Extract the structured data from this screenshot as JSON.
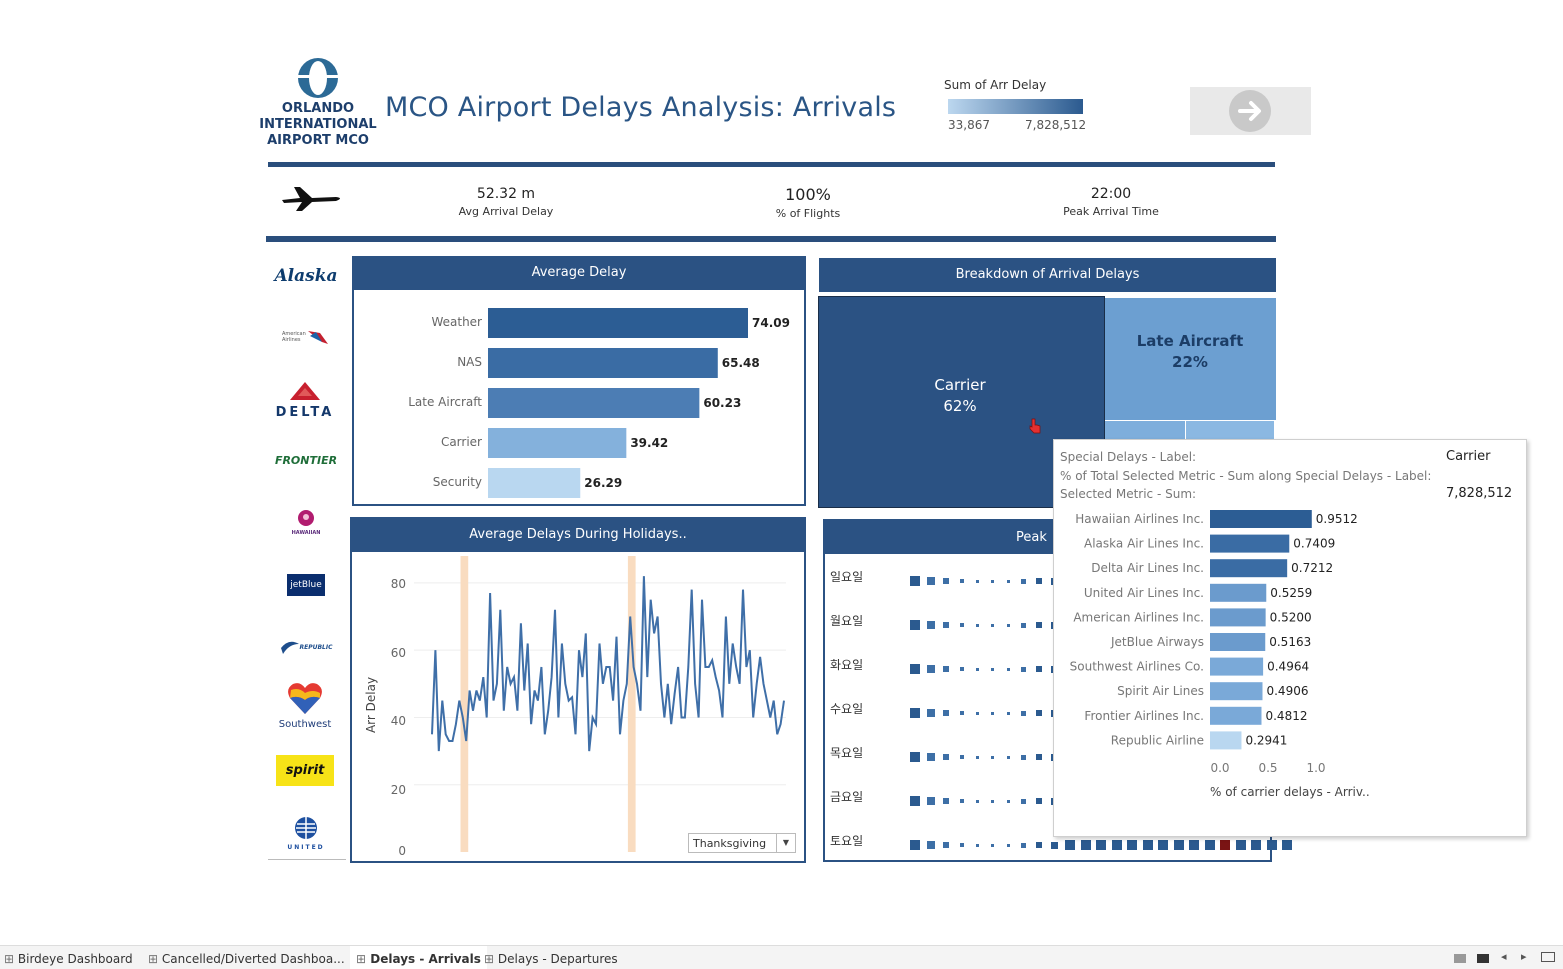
{
  "header": {
    "logo_lines": [
      "ORLANDO",
      "INTERNATIONAL",
      "AIRPORT MCO"
    ],
    "title": "MCO Airport Delays Analysis: Arrivals",
    "legend_title": "Sum of Arr Delay",
    "legend_min": "33,867",
    "legend_max": "7,828,512"
  },
  "kpis": [
    {
      "value": "52.32 m",
      "label": "Avg Arrival Delay"
    },
    {
      "value": "100%",
      "label": "% of Flights"
    },
    {
      "value": "22:00",
      "label": "Peak Arrival Time"
    }
  ],
  "airlines": [
    "Alaska",
    "American Airlines",
    "DELTA",
    "FRONTIER",
    "HAWAIIAN",
    "jetBlue",
    "REPUBLIC",
    "Southwest",
    "spirit",
    "UNITED"
  ],
  "avg_delay": {
    "title": "Average Delay",
    "rows": [
      {
        "label": "Weather",
        "value": 74.09,
        "value_text": "74.09",
        "color": "#2c5d94"
      },
      {
        "label": "NAS",
        "value": 65.48,
        "value_text": "65.48",
        "color": "#3a6ca4"
      },
      {
        "label": "Late Aircraft",
        "value": 60.23,
        "value_text": "60.23",
        "color": "#4c7db4"
      },
      {
        "label": "Carrier",
        "value": 39.42,
        "value_text": "39.42",
        "color": "#84b1dc"
      },
      {
        "label": "Security",
        "value": 26.29,
        "value_text": "26.29",
        "color": "#b9d7f0"
      }
    ]
  },
  "breakdown": {
    "title": "Breakdown of Arrival Delays",
    "carrier_name": "Carrier",
    "carrier_pct": "62%",
    "late_name": "Late Aircraft",
    "late_pct": "22%"
  },
  "holidays": {
    "title": "Average Delays During Holidays..",
    "ylabel": "Arr Delay",
    "yticks": [
      "80",
      "60",
      "40",
      "20",
      "0"
    ],
    "dropdown": "Thanksgiving"
  },
  "chart_data": {
    "type": "line",
    "title": "Average Delays During Holidays..",
    "ylabel": "Arr Delay",
    "ylim": [
      0,
      88
    ],
    "series": [
      {
        "values": [
          35,
          60,
          30,
          45,
          35,
          33,
          33,
          38,
          45,
          40,
          33,
          48,
          42,
          48,
          45,
          52,
          40,
          77,
          45,
          50,
          72,
          42,
          55,
          50,
          52,
          42,
          68,
          48,
          62,
          38,
          48,
          45,
          55,
          35,
          42,
          52,
          72,
          40,
          62,
          50,
          45,
          46,
          35,
          60,
          52,
          65,
          30,
          40,
          38,
          62,
          50,
          55,
          55,
          45,
          64,
          35,
          45,
          50,
          70,
          55,
          50,
          42,
          82,
          52,
          75,
          65,
          70,
          50,
          40,
          50,
          38,
          47,
          55,
          40,
          40,
          55,
          78,
          50,
          40,
          75,
          55,
          55,
          57,
          52,
          48,
          40,
          70,
          50,
          62,
          55,
          50,
          78,
          55,
          60,
          40,
          50,
          58,
          50,
          45,
          40,
          45,
          35,
          38,
          45
        ]
      }
    ]
  },
  "peak": {
    "title": "Peak",
    "days": [
      "일요일",
      "월요일",
      "화요일",
      "수요일",
      "목요일",
      "금요일",
      "토요일"
    ]
  },
  "tooltip": {
    "k1": "Special Delays - Label:",
    "v1": "Carrier",
    "k2": "% of Total Selected Metric - Sum along Special Delays - Label:",
    "k3": "Selected Metric - Sum:",
    "v3": "7,828,512",
    "rows": [
      {
        "label": "Hawaiian Airlines Inc.",
        "value": 0.9512,
        "value_text": "0.9512",
        "color": "#2c5d94"
      },
      {
        "label": "Alaska Air Lines Inc.",
        "value": 0.7409,
        "value_text": "0.7409",
        "color": "#3a6ca4"
      },
      {
        "label": "Delta Air Lines Inc.",
        "value": 0.7212,
        "value_text": "0.7212",
        "color": "#3a6ca4"
      },
      {
        "label": "United Air Lines Inc.",
        "value": 0.5259,
        "value_text": "0.5259",
        "color": "#6b9bcd"
      },
      {
        "label": "American Airlines Inc.",
        "value": 0.52,
        "value_text": "0.5200",
        "color": "#6b9bcd"
      },
      {
        "label": "JetBlue Airways",
        "value": 0.5163,
        "value_text": "0.5163",
        "color": "#6b9bcd"
      },
      {
        "label": "Southwest Airlines Co.",
        "value": 0.4964,
        "value_text": "0.4964",
        "color": "#7aa9d8"
      },
      {
        "label": "Spirit Air Lines",
        "value": 0.4906,
        "value_text": "0.4906",
        "color": "#7aa9d8"
      },
      {
        "label": "Frontier Airlines Inc.",
        "value": 0.4812,
        "value_text": "0.4812",
        "color": "#7aa9d8"
      },
      {
        "label": "Republic Airline",
        "value": 0.2941,
        "value_text": "0.2941",
        "color": "#b9d7f0"
      }
    ],
    "ticks": [
      "0.0",
      "0.5",
      "1.0"
    ],
    "axis_label": "% of carrier delays - Arriv.."
  },
  "tabs": [
    "Birdeye Dashboard",
    "Cancelled/Diverted Dashboa...",
    "Delays - Arrivals",
    "Delays - Departures"
  ]
}
